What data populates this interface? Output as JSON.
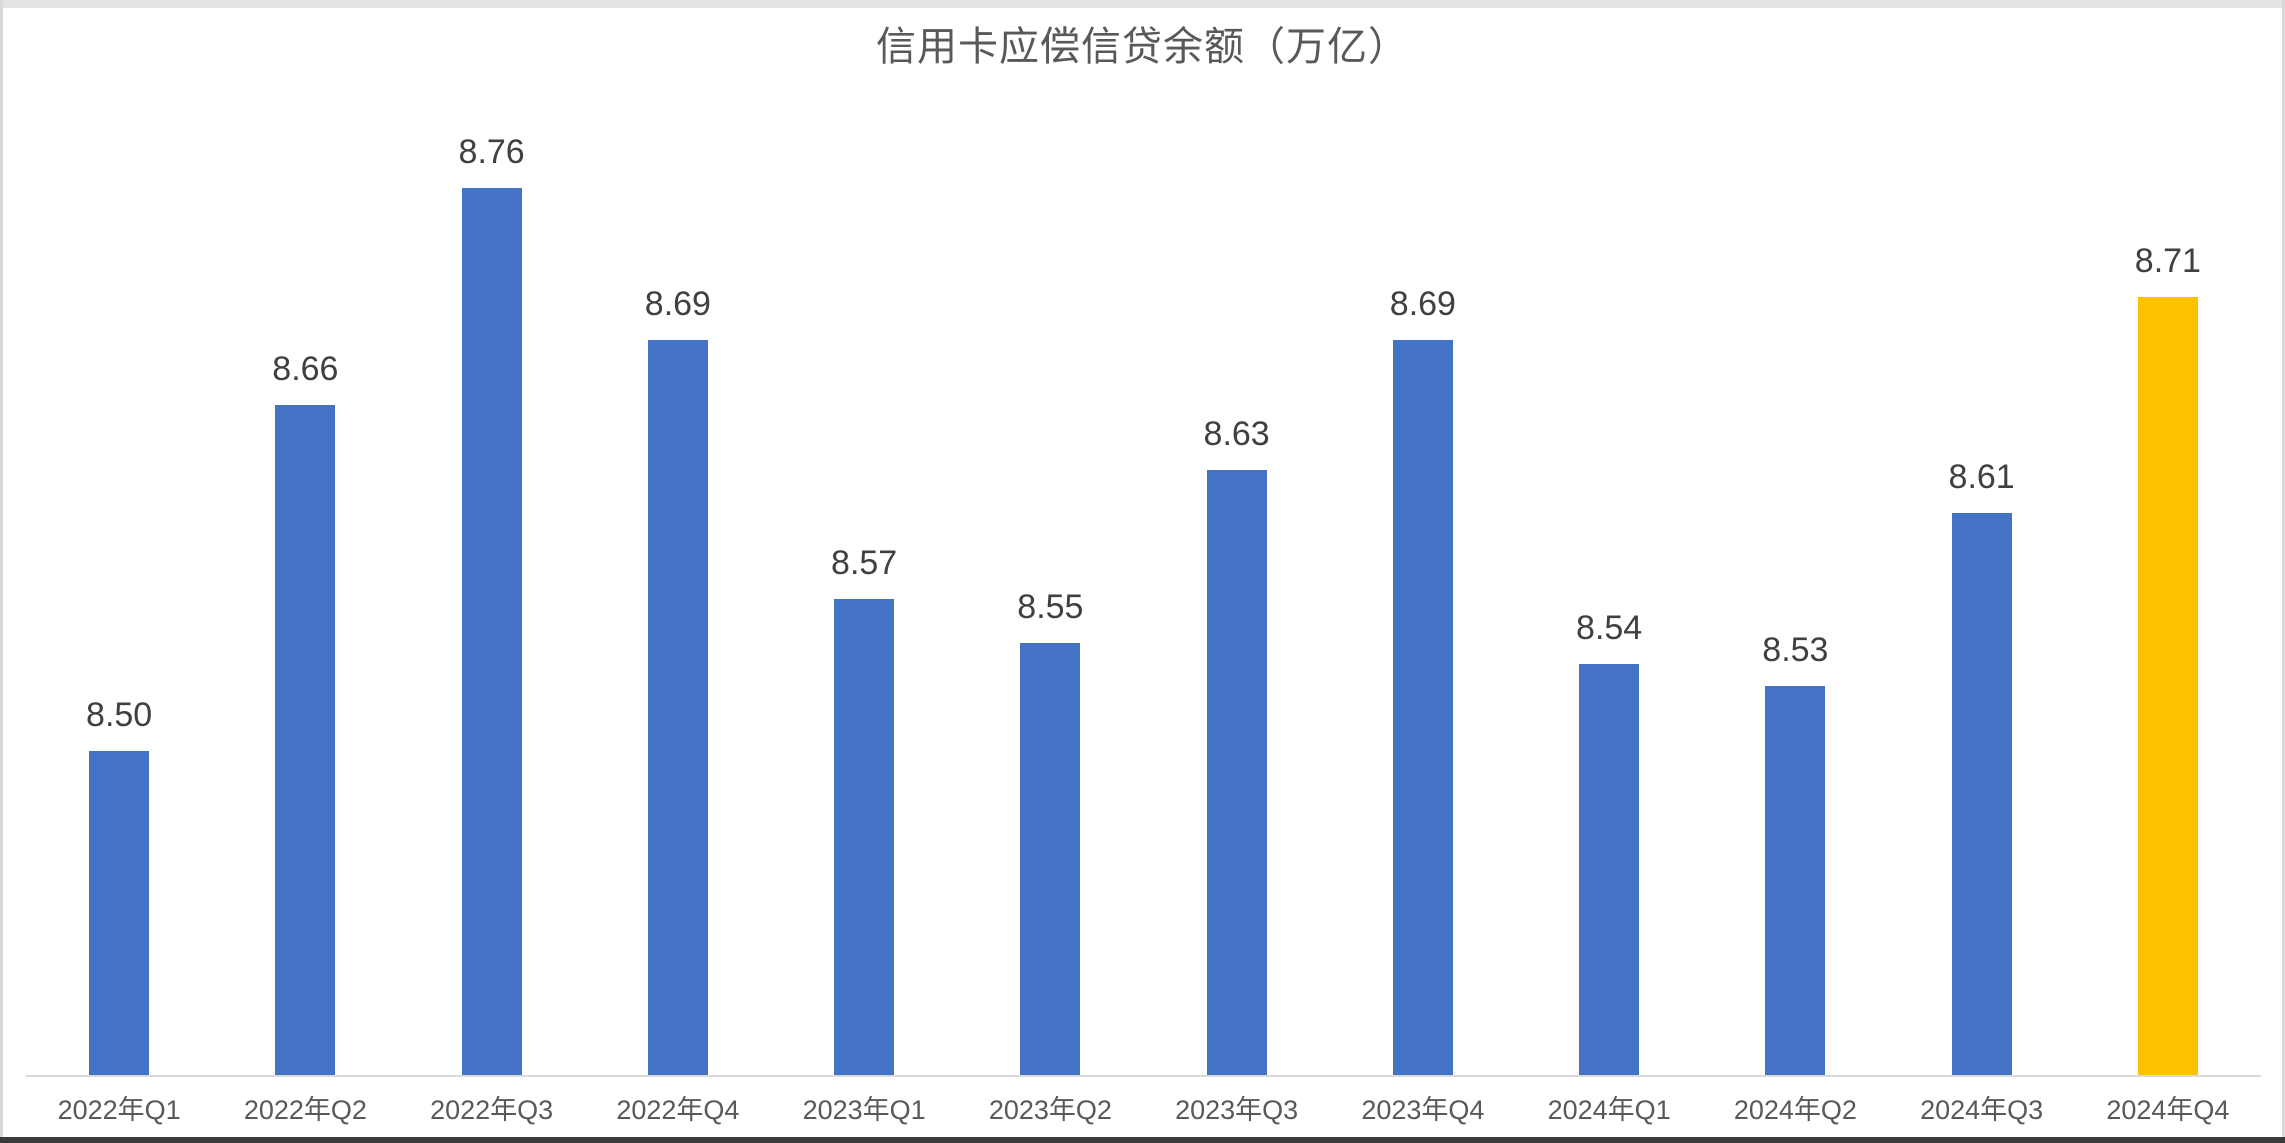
{
  "chart_data": {
    "type": "bar",
    "title": "信用卡应偿信贷余额（万亿）",
    "categories": [
      "2022年Q1",
      "2022年Q2",
      "2022年Q3",
      "2022年Q4",
      "2023年Q1",
      "2023年Q2",
      "2023年Q3",
      "2023年Q4",
      "2024年Q1",
      "2024年Q2",
      "2024年Q3",
      "2024年Q4"
    ],
    "values": [
      8.5,
      8.66,
      8.76,
      8.69,
      8.57,
      8.55,
      8.63,
      8.69,
      8.54,
      8.53,
      8.61,
      8.71
    ],
    "value_labels": [
      "8.50",
      "8.66",
      "8.76",
      "8.69",
      "8.57",
      "8.55",
      "8.63",
      "8.69",
      "8.54",
      "8.53",
      "8.61",
      "8.71"
    ],
    "xlabel": "",
    "ylabel": "",
    "ylim": [
      8.35,
      8.787
    ],
    "grid": false,
    "legend": false,
    "data_labels_shown": true,
    "bar_color": "#4472C4",
    "highlight_color": "#FFC000",
    "highlight_index": 11,
    "value_label_color": "#404040",
    "axis_label_color": "#595959",
    "axis_line_color": "#D9D9D9"
  }
}
